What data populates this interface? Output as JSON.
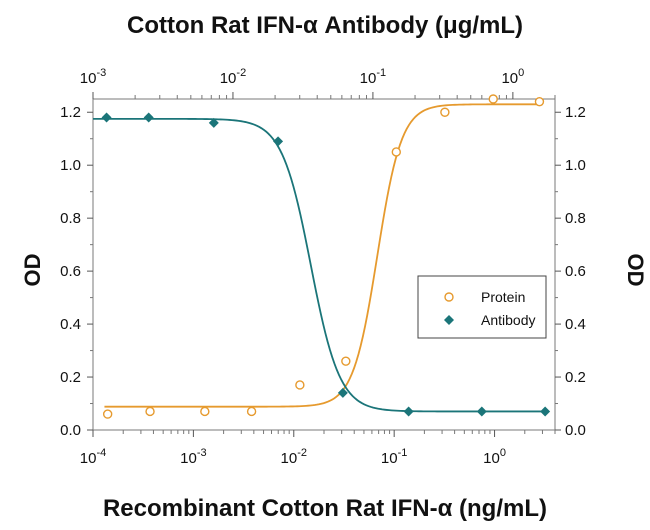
{
  "chart_data": {
    "type": "scatter",
    "top_title": "Cotton Rat IFN-α Antibody (μg/mL)",
    "xlabel": "Recombinant Cotton Rat IFN-α (ng/mL)",
    "ylabel_left": "OD",
    "ylabel_right": "OD",
    "x_scale": "log",
    "xlim": [
      0.0001,
      4
    ],
    "top_xlim": [
      0.001,
      2
    ],
    "ylim": [
      0,
      1.25
    ],
    "grid": false,
    "legend_position": "center-right",
    "bottom_ticks": [
      0.0001,
      0.001,
      0.01,
      0.1,
      1
    ],
    "top_ticks": [
      0.001,
      0.01,
      0.1,
      1
    ],
    "y_ticks": [
      "0.0",
      "0.2",
      "0.4",
      "0.6",
      "0.8",
      "1.0",
      "1.2"
    ],
    "tick_base": "10",
    "bottom_tick_exponents": [
      "-4",
      "-3",
      "-2",
      "-1",
      "0"
    ],
    "top_tick_exponents": [
      "-3",
      "-2",
      "-1",
      "0"
    ],
    "series": [
      {
        "name": "Protein",
        "axis": "bottom",
        "marker": "open-circle",
        "color": "#E69A2E",
        "x": [
          0.00014,
          0.00037,
          0.0013,
          0.0038,
          0.0115,
          0.033,
          0.105,
          0.32,
          0.97,
          2.8
        ],
        "y": [
          0.06,
          0.07,
          0.07,
          0.07,
          0.17,
          0.26,
          1.05,
          1.2,
          1.25,
          1.24
        ],
        "fit": {
          "bottom": 0.088,
          "top": 1.23,
          "ec50": 0.068,
          "hill": 3.6
        }
      },
      {
        "name": "Antibody",
        "axis": "top",
        "marker": "filled-diamond",
        "color": "#1B7579",
        "x": [
          0.00125,
          0.0025,
          0.0073,
          0.021,
          0.061,
          0.18,
          0.6,
          1.7
        ],
        "y": [
          1.18,
          1.18,
          1.16,
          1.09,
          0.14,
          0.07,
          0.07,
          0.07
        ],
        "fit": {
          "bottom": 0.07,
          "top": 1.175,
          "ec50": 0.036,
          "hill": -4.2
        }
      }
    ]
  }
}
